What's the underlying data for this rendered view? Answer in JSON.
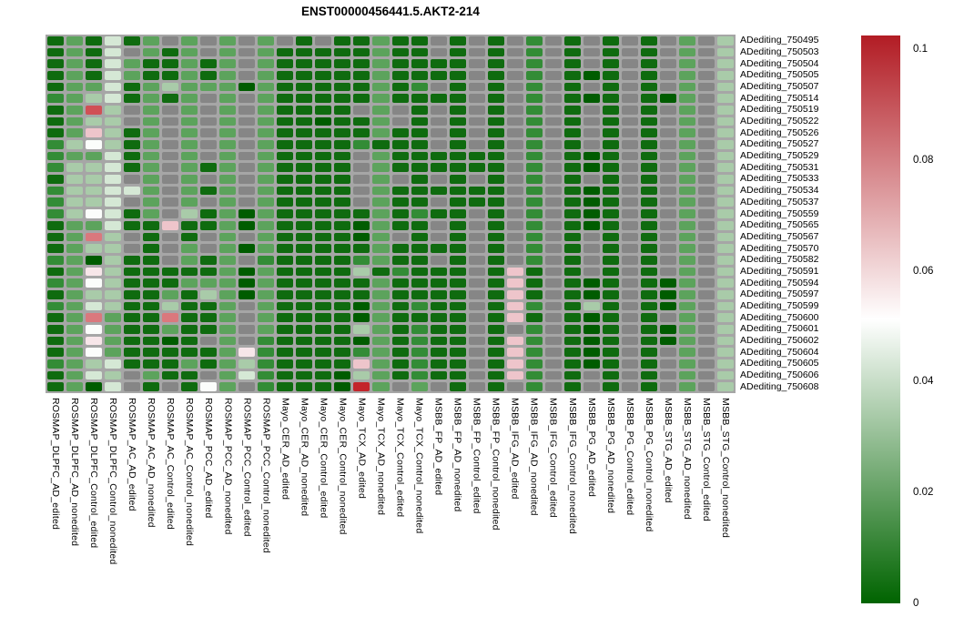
{
  "chart_data": {
    "type": "heatmap",
    "title": "ENST00000456441.5.AKT2-214",
    "rows": [
      "ADediting_750495",
      "ADediting_750503",
      "ADediting_750504",
      "ADediting_750505",
      "ADediting_750507",
      "ADediting_750514",
      "ADediting_750519",
      "ADediting_750522",
      "ADediting_750526",
      "ADediting_750527",
      "ADediting_750529",
      "ADediting_750531",
      "ADediting_750533",
      "ADediting_750534",
      "ADediting_750537",
      "ADediting_750559",
      "ADediting_750565",
      "ADediting_750567",
      "ADediting_750570",
      "ADediting_750582",
      "ADediting_750591",
      "ADediting_750594",
      "ADediting_750597",
      "ADediting_750599",
      "ADediting_750600",
      "ADediting_750601",
      "ADediting_750602",
      "ADediting_750604",
      "ADediting_750605",
      "ADediting_750606",
      "ADediting_750608"
    ],
    "columns": [
      "ROSMAP_DLPFC_AD_edited",
      "ROSMAP_DLPFC_AD_nonedited",
      "ROSMAP_DLPFC_Control_edited",
      "ROSMAP_DLPFC_Control_nonedited",
      "ROSMAP_AC_AD_edited",
      "ROSMAP_AC_AD_nonedited",
      "ROSMAP_AC_Control_edited",
      "ROSMAP_AC_Control_nonedited",
      "ROSMAP_PCC_AD_edited",
      "ROSMAP_PCC_AD_nonedited",
      "ROSMAP_PCC_Control_edited",
      "ROSMAP_PCC_Control_nonedited",
      "Mayo_CER_AD_edited",
      "Mayo_CER_AD_nonedited",
      "Mayo_CER_Control_edited",
      "Mayo_CER_Control_nonedited",
      "Mayo_TCX_AD_edited",
      "Mayo_TCX_AD_nonedited",
      "Mayo_TCX_Control_edited",
      "Mayo_TCX_Control_nonedited",
      "MSBB_FP_AD_edited",
      "MSBB_FP_AD_nonedited",
      "MSBB_FP_Control_edited",
      "MSBB_FP_Control_nonedited",
      "MSBB_IFG_AD_edited",
      "MSBB_IFG_AD_nonedited",
      "MSBB_IFG_Control_edited",
      "MSBB_IFG_Control_nonedited",
      "MSBB_PG_AD_edited",
      "MSBB_PG_AD_nonedited",
      "MSBB_PG_Control_edited",
      "MSBB_PG_Control_nonedited",
      "MSBB_STG_AD_edited",
      "MSBB_STG_AD_nonedited",
      "MSBB_STG_Control_edited",
      "MSBB_STG_Control_nonedited"
    ],
    "matrix_codes": [
      "gmgpgmnmnmnmngnggmggngngnfngngngnmnl",
      "gmgpnmgmnmnmgggggmggngngnfngngngnmnl",
      "gmgpmggmgmnmgggggmggggngnfngngngnmnl",
      "gmgpmggmgmnmgggggmggggngnfngdgngnmnl",
      "gmmpgmlmmmdmgggggmgfngngnfngngngnmnl",
      "fmlpgmgmnmnmgggggmggggngnfngdgngdmnl",
      "gmrlnmnmnmnmggggnmngngngnfngngngnmnl",
      "gmllnmnmnmnmggdggmngngngnfngngngnmnl",
      "gmklgmnmnmnmgggggmggngngnfngngngnmnl",
      "flwlgmnmnmnmggggfgggngngnfngngngnmnl",
      "fmmpgmnmnmnmggggnmggggggnfngdgngnmnl",
      "fllpgmnmgmnmggggnmggggggnfngdgngnmnl",
      "gllpnmnmnmnmggggnmngngngnfngngngnmnl",
      "fllppmnmgmnmggggnmggggggnfngdgngnmnl",
      "fllpnmnmnmnmggggnmggngggnfngdgngnmnl",
      "flwpgmnlgmdmgggggmgfggngnfngdgngnmnl",
      "gmmpggkggmdmggggdmggngngnfngdgngnmnl",
      "gmslngngnmnmggggdmngngngnfngngngnmnl",
      "gmllngnmnmdmgggggmggggngnfngngngnmnl",
      "fmdlggnmgmnfggggfmggngngnfngngngnmnl",
      "gmqlgggggmdmgggglgfgggngkgngngngnmnl",
      "fmwlgggmmmdmgggggmggggngkgngdgngdmnl",
      "gmllggmglmdmgggggmggggngkgngdgngdmnl",
      "fmplgglggmnmggggdmgfggngkfnglgngdmnl",
      "gmsmggsggmnmggggdmggggngkgngdgngnmnl",
      "gmwmggmggmnmgggglmgfggngnfngdgngdmnl",
      "gmqmggdgnmnfggggdmgfggngkfngdgngdmnl",
      "gmwmgggggmqfggggfmgfggngkfngdgngnmnl",
      "fmlpgggmgmlfggggkmgfggngkfngdgngnmnl",
      "gmplnmggnmpfgggdlmgfggngkfngngngnmnl",
      "gmdpngngwmnfgggdRmnmngngnfngngngnmnl"
    ],
    "code_colors": {
      "n": "#868686",
      "d": "#005c00",
      "g": "#0f6b0f",
      "f": "#338c36",
      "m": "#5ca35c",
      "l": "#a9cba9",
      "p": "#d5e8d5",
      "w": "#fbfdfb",
      "q": "#f7e6e9",
      "k": "#eec5cb",
      "s": "#da787d",
      "r": "#d05055",
      "R": "#c3242b"
    },
    "code_values": {
      "n": null,
      "d": 0.002,
      "g": 0.008,
      "f": 0.015,
      "m": 0.022,
      "l": 0.032,
      "p": 0.04,
      "w": 0.05,
      "q": 0.057,
      "k": 0.063,
      "s": 0.075,
      "r": 0.08,
      "R": 0.098
    },
    "colorbar": {
      "min": 0,
      "max": 0.1,
      "tick_labels": [
        "0.1",
        "0.08",
        "0.06",
        "0.04",
        "0.02",
        "0"
      ],
      "tick_values": [
        0.1,
        0.08,
        0.06,
        0.04,
        0.02,
        0
      ],
      "low_color": "#006400",
      "mid_color": "#ffffff",
      "high_color": "#b21c24",
      "na_color": "#868686",
      "legend_position": "right"
    },
    "grid": false
  }
}
